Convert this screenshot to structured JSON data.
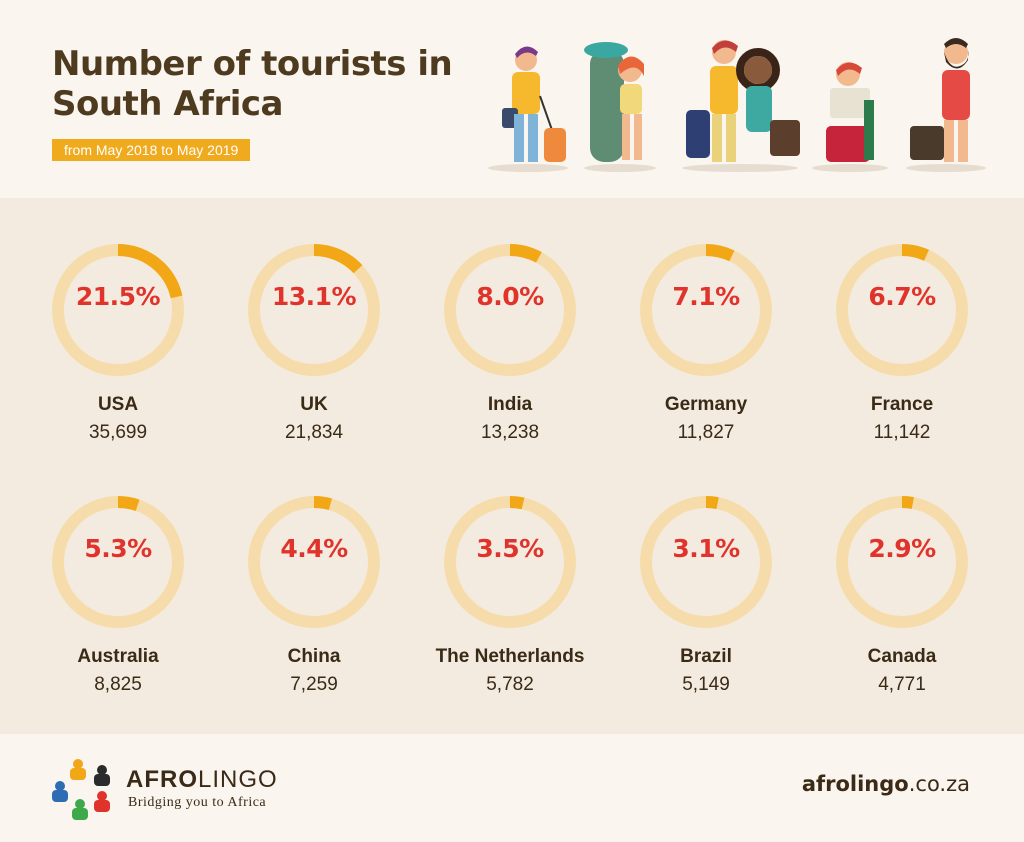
{
  "header": {
    "title": "Number of tourists in South Africa",
    "subtitle": "from May 2018 to May 2019"
  },
  "colors": {
    "ring_track": "#f7dcab",
    "ring_fill": "#f2a716",
    "percent_text": "#e0332b",
    "title_text": "#4e3b1f",
    "subtitle_bg": "#f0aa1e"
  },
  "chart_data": {
    "type": "donut-grid",
    "title": "Number of tourists in South Africa",
    "subtitle": "from May 2018 to May 2019",
    "categories": [
      "USA",
      "UK",
      "India",
      "Germany",
      "France",
      "Australia",
      "China",
      "The Netherlands",
      "Brazil",
      "Canada"
    ],
    "percent_labels": [
      "21.5%",
      "13.1%",
      "8.0%",
      "7.1%",
      "6.7%",
      "5.3%",
      "4.4%",
      "3.5%",
      "3.1%",
      "2.9%"
    ],
    "percent_values": [
      21.5,
      13.1,
      8.0,
      7.1,
      6.7,
      5.3,
      4.4,
      3.5,
      3.1,
      2.9
    ],
    "count_labels": [
      "35,699",
      "21,834",
      "13,238",
      "11,827",
      "11,142",
      "8,825",
      "7,259",
      "5,782",
      "5,149",
      "4,771"
    ],
    "counts": [
      35699,
      21834,
      13238,
      11827,
      11142,
      8825,
      7259,
      5782,
      5149,
      4771
    ]
  },
  "footer": {
    "logo_bold": "AFRO",
    "logo_rest": "LINGO",
    "tagline": "Bridging you to Africa",
    "site_bold": "afrolingo",
    "site_rest": ".co.za"
  },
  "icons": {
    "illustration": "travelers-with-luggage-illustration",
    "logo": "afrolingo-people-logo-icon"
  }
}
